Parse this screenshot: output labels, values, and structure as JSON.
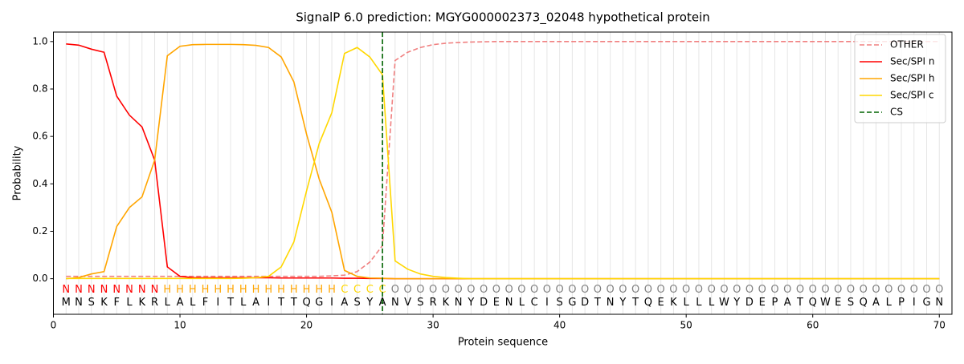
{
  "chart_data": {
    "type": "line",
    "title": "SignalP 6.0 prediction: MGYG000002373_02048 hypothetical protein",
    "xlabel": "Protein sequence",
    "ylabel": "Probability",
    "x": [
      1,
      2,
      3,
      4,
      5,
      6,
      7,
      8,
      9,
      10,
      11,
      12,
      13,
      14,
      15,
      16,
      17,
      18,
      19,
      20,
      21,
      22,
      23,
      24,
      25,
      26,
      27,
      28,
      29,
      30,
      31,
      32,
      33,
      34,
      35,
      36,
      37,
      38,
      39,
      40,
      41,
      42,
      43,
      44,
      45,
      46,
      47,
      48,
      49,
      50,
      51,
      52,
      53,
      54,
      55,
      56,
      57,
      58,
      59,
      60,
      61,
      62,
      63,
      64,
      65,
      66,
      67,
      68,
      69,
      70
    ],
    "residues": [
      "M",
      "N",
      "S",
      "K",
      "F",
      "L",
      "K",
      "R",
      "L",
      "A",
      "L",
      "F",
      "I",
      "T",
      "L",
      "A",
      "I",
      "T",
      "T",
      "Q",
      "G",
      "I",
      "A",
      "S",
      "Y",
      "A",
      "N",
      "V",
      "S",
      "R",
      "K",
      "N",
      "Y",
      "D",
      "E",
      "N",
      "L",
      "C",
      "I",
      "S",
      "G",
      "D",
      "T",
      "N",
      "Y",
      "T",
      "Q",
      "E",
      "K",
      "L",
      "L",
      "L",
      "W",
      "Y",
      "D",
      "E",
      "P",
      "A",
      "T",
      "Q",
      "W",
      "E",
      "S",
      "Q",
      "A",
      "L",
      "P",
      "I",
      "G",
      "N"
    ],
    "regions": [
      "N",
      "N",
      "N",
      "N",
      "N",
      "N",
      "N",
      "N",
      "H",
      "H",
      "H",
      "H",
      "H",
      "H",
      "H",
      "H",
      "H",
      "H",
      "H",
      "H",
      "H",
      "H",
      "C",
      "C",
      "C",
      "C",
      "O",
      "O",
      "O",
      "O",
      "O",
      "O",
      "O",
      "O",
      "O",
      "O",
      "O",
      "O",
      "O",
      "O",
      "O",
      "O",
      "O",
      "O",
      "O",
      "O",
      "O",
      "O",
      "O",
      "O",
      "O",
      "O",
      "O",
      "O",
      "O",
      "O",
      "O",
      "O",
      "O",
      "O",
      "O",
      "O",
      "O",
      "O",
      "O",
      "O",
      "O",
      "O",
      "O",
      "O"
    ],
    "region_colors": {
      "N": "#ff0000",
      "H": "#ffa500",
      "C": "#ffd700",
      "O": "#808080"
    },
    "series": [
      {
        "name": "OTHER",
        "color": "#f08080",
        "dash": true,
        "values": [
          0.01,
          0.01,
          0.01,
          0.01,
          0.01,
          0.01,
          0.01,
          0.01,
          0.01,
          0.01,
          0.01,
          0.01,
          0.01,
          0.01,
          0.01,
          0.01,
          0.01,
          0.01,
          0.01,
          0.01,
          0.01,
          0.012,
          0.015,
          0.03,
          0.07,
          0.14,
          0.92,
          0.955,
          0.975,
          0.987,
          0.993,
          0.996,
          0.998,
          0.999,
          1,
          1,
          1,
          1,
          1,
          1,
          1,
          1,
          1,
          1,
          1,
          1,
          1,
          1,
          1,
          1,
          1,
          1,
          1,
          1,
          1,
          1,
          1,
          1,
          1,
          1,
          1,
          1,
          1,
          1,
          1,
          1,
          1,
          1,
          1,
          1
        ]
      },
      {
        "name": "Sec/SPI n",
        "color": "#ff0000",
        "dash": false,
        "values": [
          0.99,
          0.985,
          0.968,
          0.955,
          0.77,
          0.69,
          0.64,
          0.5,
          0.05,
          0.01,
          0.005,
          0.004,
          0.004,
          0.004,
          0.004,
          0.004,
          0.004,
          0.003,
          0.003,
          0.003,
          0.003,
          0.003,
          0.002,
          0.002,
          0.001,
          0.001,
          0,
          0,
          0,
          0,
          0,
          0,
          0,
          0,
          0,
          0,
          0,
          0,
          0,
          0,
          0,
          0,
          0,
          0,
          0,
          0,
          0,
          0,
          0,
          0,
          0,
          0,
          0,
          0,
          0,
          0,
          0,
          0,
          0,
          0,
          0,
          0,
          0,
          0,
          0,
          0,
          0,
          0,
          0,
          0
        ]
      },
      {
        "name": "Sec/SPI h",
        "color": "#ffa500",
        "dash": false,
        "values": [
          0,
          0.005,
          0.02,
          0.03,
          0.22,
          0.3,
          0.345,
          0.5,
          0.94,
          0.98,
          0.987,
          0.988,
          0.988,
          0.988,
          0.987,
          0.984,
          0.975,
          0.935,
          0.83,
          0.61,
          0.42,
          0.28,
          0.035,
          0.01,
          0.003,
          0.002,
          0,
          0,
          0,
          0,
          0,
          0,
          0,
          0,
          0,
          0,
          0,
          0,
          0,
          0,
          0,
          0,
          0,
          0,
          0,
          0,
          0,
          0,
          0,
          0,
          0,
          0,
          0,
          0,
          0,
          0,
          0,
          0,
          0,
          0,
          0,
          0,
          0,
          0,
          0,
          0,
          0,
          0,
          0,
          0
        ]
      },
      {
        "name": "Sec/SPI c",
        "color": "#ffd700",
        "dash": false,
        "values": [
          0.001,
          0.001,
          0.001,
          0.001,
          0.001,
          0.001,
          0.001,
          0.001,
          0.001,
          0.001,
          0.001,
          0.001,
          0.001,
          0.001,
          0.002,
          0.004,
          0.01,
          0.05,
          0.155,
          0.37,
          0.57,
          0.7,
          0.95,
          0.975,
          0.935,
          0.86,
          0.075,
          0.04,
          0.02,
          0.01,
          0.005,
          0.002,
          0,
          0,
          0,
          0,
          0,
          0,
          0,
          0,
          0,
          0,
          0,
          0,
          0,
          0,
          0,
          0,
          0,
          0,
          0,
          0,
          0,
          0,
          0,
          0,
          0,
          0,
          0,
          0,
          0,
          0,
          0,
          0,
          0,
          0,
          0,
          0,
          0,
          0
        ]
      }
    ],
    "cs": {
      "name": "CS",
      "x": 26,
      "color": "#006400"
    },
    "xlim": [
      0,
      71
    ],
    "ylim": [
      -0.15,
      1.04
    ],
    "xticks": [
      0,
      10,
      20,
      30,
      40,
      50,
      60,
      70
    ],
    "yticks": [
      {
        "value": 0,
        "label": "0.0"
      },
      {
        "value": 0.2,
        "label": "0.2"
      },
      {
        "value": 0.4,
        "label": "0.4"
      },
      {
        "value": 0.6,
        "label": "0.6"
      },
      {
        "value": 0.8,
        "label": "0.8"
      },
      {
        "value": 1,
        "label": "1.0"
      }
    ],
    "legend": "upper right"
  }
}
